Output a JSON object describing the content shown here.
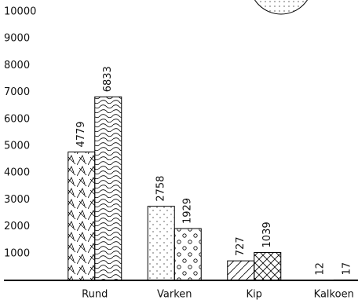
{
  "chart_data": {
    "type": "bar",
    "categories": [
      "Rund",
      "Varken",
      "Kip",
      "Kalkoen"
    ],
    "series": [
      {
        "color": "#000000",
        "values": [
          4779,
          2758,
          727,
          12
        ]
      },
      {
        "color": "#000000",
        "values": [
          6833,
          1929,
          1039,
          17
        ]
      }
    ],
    "ylim": [
      0,
      10000
    ],
    "yticks": [
      1000,
      2000,
      3000,
      4000,
      5000,
      6000,
      7000,
      8000,
      9000,
      10000
    ],
    "grid": false
  }
}
